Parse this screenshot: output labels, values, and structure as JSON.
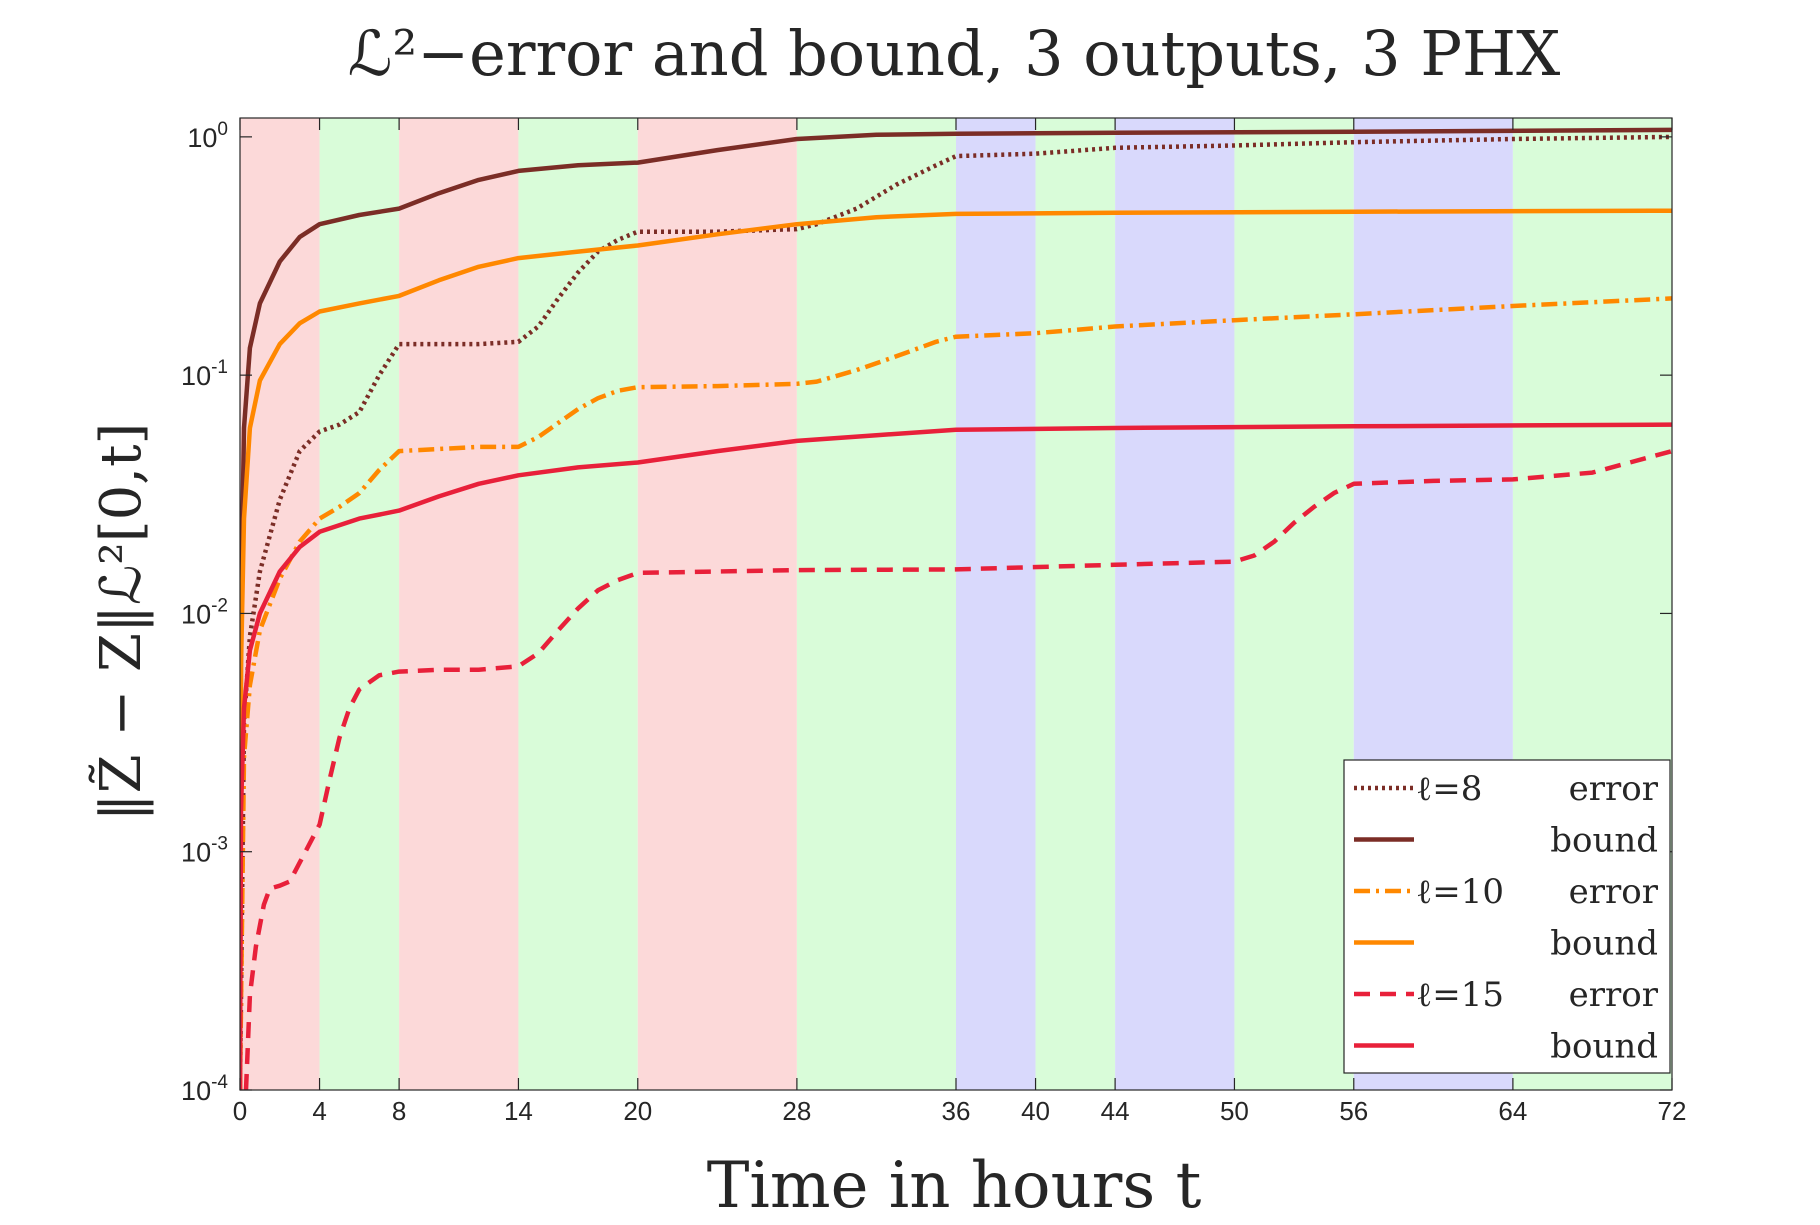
{
  "chart_data": {
    "type": "line",
    "title": "ℒ²−error and bound, 3 outputs, 3 PHX",
    "xlabel": "Time in hours t",
    "ylabel": "‖Z̃ − Z‖ℒ²[0,t]",
    "xlim": [
      0,
      72
    ],
    "ylim": [
      0.0001,
      1.2
    ],
    "yscale": "log",
    "xticks": [
      0,
      4,
      8,
      14,
      20,
      28,
      36,
      40,
      44,
      50,
      56,
      64,
      72
    ],
    "yticks": [
      {
        "value": 0.0001,
        "base": "10",
        "exp": "-4"
      },
      {
        "value": 0.001,
        "base": "10",
        "exp": "-3"
      },
      {
        "value": 0.01,
        "base": "10",
        "exp": "-2"
      },
      {
        "value": 0.1,
        "base": "10",
        "exp": "-1"
      },
      {
        "value": 1,
        "base": "10",
        "exp": "0"
      }
    ],
    "background_bands": [
      {
        "from": 0,
        "to": 4,
        "color": "#fcd9d9"
      },
      {
        "from": 4,
        "to": 8,
        "color": "#d9fcd9"
      },
      {
        "from": 8,
        "to": 14,
        "color": "#fcd9d9"
      },
      {
        "from": 14,
        "to": 20,
        "color": "#d9fcd9"
      },
      {
        "from": 20,
        "to": 28,
        "color": "#fcd9d9"
      },
      {
        "from": 28,
        "to": 36,
        "color": "#d9fcd9"
      },
      {
        "from": 36,
        "to": 40,
        "color": "#d9d9fc"
      },
      {
        "from": 40,
        "to": 44,
        "color": "#d9fcd9"
      },
      {
        "from": 44,
        "to": 50,
        "color": "#d9d9fc"
      },
      {
        "from": 50,
        "to": 56,
        "color": "#d9fcd9"
      },
      {
        "from": 56,
        "to": 64,
        "color": "#d9d9fc"
      },
      {
        "from": 64,
        "to": 72,
        "color": "#d9fcd9"
      }
    ],
    "legend_position": "bottom-right",
    "series": [
      {
        "name": "ℓ=8 error",
        "color": "#7b2d26",
        "dash": "dotted",
        "points": [
          [
            0,
            0.0001
          ],
          [
            0.2,
            0.0035
          ],
          [
            0.5,
            0.008
          ],
          [
            1,
            0.015
          ],
          [
            2,
            0.03
          ],
          [
            3,
            0.048
          ],
          [
            4,
            0.058
          ],
          [
            5,
            0.062
          ],
          [
            6,
            0.07
          ],
          [
            7,
            0.1
          ],
          [
            8,
            0.135
          ],
          [
            10,
            0.135
          ],
          [
            12,
            0.135
          ],
          [
            14,
            0.138
          ],
          [
            15,
            0.16
          ],
          [
            16,
            0.21
          ],
          [
            17,
            0.27
          ],
          [
            18,
            0.33
          ],
          [
            19,
            0.37
          ],
          [
            20,
            0.4
          ],
          [
            24,
            0.4
          ],
          [
            28,
            0.41
          ],
          [
            29,
            0.43
          ],
          [
            31,
            0.5
          ],
          [
            33,
            0.63
          ],
          [
            35,
            0.76
          ],
          [
            36,
            0.83
          ],
          [
            38,
            0.84
          ],
          [
            40,
            0.85
          ],
          [
            44,
            0.9
          ],
          [
            50,
            0.92
          ],
          [
            56,
            0.95
          ],
          [
            64,
            0.98
          ],
          [
            72,
            1.0
          ]
        ]
      },
      {
        "name": "ℓ=8 bound",
        "color": "#7b2d26",
        "dash": "solid",
        "points": [
          [
            0,
            0.0001
          ],
          [
            0.05,
            0.01
          ],
          [
            0.2,
            0.06
          ],
          [
            0.5,
            0.13
          ],
          [
            1,
            0.2
          ],
          [
            2,
            0.3
          ],
          [
            3,
            0.38
          ],
          [
            4,
            0.43
          ],
          [
            6,
            0.47
          ],
          [
            8,
            0.5
          ],
          [
            10,
            0.58
          ],
          [
            12,
            0.66
          ],
          [
            14,
            0.72
          ],
          [
            17,
            0.76
          ],
          [
            20,
            0.78
          ],
          [
            24,
            0.88
          ],
          [
            28,
            0.98
          ],
          [
            32,
            1.02
          ],
          [
            36,
            1.03
          ],
          [
            44,
            1.04
          ],
          [
            56,
            1.05
          ],
          [
            72,
            1.07
          ]
        ]
      },
      {
        "name": "ℓ=10 error",
        "color": "#ff8800",
        "dash": "dashdot",
        "points": [
          [
            0,
            0.0001
          ],
          [
            0.2,
            0.0025
          ],
          [
            0.5,
            0.005
          ],
          [
            1,
            0.0085
          ],
          [
            2,
            0.014
          ],
          [
            3,
            0.02
          ],
          [
            4,
            0.025
          ],
          [
            5,
            0.028
          ],
          [
            6,
            0.032
          ],
          [
            7,
            0.04
          ],
          [
            8,
            0.048
          ],
          [
            10,
            0.049
          ],
          [
            12,
            0.05
          ],
          [
            14,
            0.05
          ],
          [
            15,
            0.055
          ],
          [
            16,
            0.063
          ],
          [
            17,
            0.072
          ],
          [
            18,
            0.08
          ],
          [
            19,
            0.086
          ],
          [
            20,
            0.089
          ],
          [
            24,
            0.09
          ],
          [
            28,
            0.092
          ],
          [
            29,
            0.094
          ],
          [
            31,
            0.105
          ],
          [
            33,
            0.12
          ],
          [
            35,
            0.138
          ],
          [
            36,
            0.145
          ],
          [
            40,
            0.15
          ],
          [
            44,
            0.16
          ],
          [
            50,
            0.17
          ],
          [
            56,
            0.18
          ],
          [
            64,
            0.195
          ],
          [
            72,
            0.21
          ]
        ]
      },
      {
        "name": "ℓ=10 bound",
        "color": "#ff8800",
        "dash": "solid",
        "points": [
          [
            0,
            0.0001
          ],
          [
            0.05,
            0.006
          ],
          [
            0.2,
            0.025
          ],
          [
            0.5,
            0.06
          ],
          [
            1,
            0.095
          ],
          [
            2,
            0.135
          ],
          [
            3,
            0.165
          ],
          [
            4,
            0.185
          ],
          [
            6,
            0.2
          ],
          [
            8,
            0.215
          ],
          [
            10,
            0.25
          ],
          [
            12,
            0.285
          ],
          [
            14,
            0.31
          ],
          [
            17,
            0.33
          ],
          [
            20,
            0.35
          ],
          [
            24,
            0.39
          ],
          [
            28,
            0.43
          ],
          [
            32,
            0.46
          ],
          [
            36,
            0.475
          ],
          [
            44,
            0.48
          ],
          [
            56,
            0.485
          ],
          [
            72,
            0.49
          ]
        ]
      },
      {
        "name": "ℓ=15 error",
        "color": "#e8203a",
        "dash": "dashed",
        "points": [
          [
            0.3,
            0.0001
          ],
          [
            0.5,
            0.00025
          ],
          [
            0.8,
            0.0004
          ],
          [
            1.2,
            0.0006
          ],
          [
            1.5,
            0.0007
          ],
          [
            2,
            0.00072
          ],
          [
            2.5,
            0.00075
          ],
          [
            3,
            0.0009
          ],
          [
            4,
            0.0013
          ],
          [
            4.5,
            0.002
          ],
          [
            5,
            0.003
          ],
          [
            5.5,
            0.004
          ],
          [
            6,
            0.0048
          ],
          [
            7,
            0.0055
          ],
          [
            8,
            0.0057
          ],
          [
            10,
            0.0058
          ],
          [
            12,
            0.0058
          ],
          [
            14,
            0.006
          ],
          [
            15,
            0.0068
          ],
          [
            16,
            0.0085
          ],
          [
            17,
            0.0105
          ],
          [
            18,
            0.0125
          ],
          [
            19,
            0.0138
          ],
          [
            20,
            0.0148
          ],
          [
            24,
            0.015
          ],
          [
            28,
            0.0152
          ],
          [
            36,
            0.0153
          ],
          [
            44,
            0.016
          ],
          [
            50,
            0.0165
          ],
          [
            51,
            0.0175
          ],
          [
            52,
            0.02
          ],
          [
            53,
            0.024
          ],
          [
            54,
            0.028
          ],
          [
            55,
            0.032
          ],
          [
            56,
            0.035
          ],
          [
            60,
            0.036
          ],
          [
            64,
            0.0365
          ],
          [
            68,
            0.039
          ],
          [
            72,
            0.048
          ]
        ]
      },
      {
        "name": "ℓ=15 bound",
        "color": "#e8203a",
        "dash": "solid",
        "points": [
          [
            0,
            0.0001
          ],
          [
            0.05,
            0.0015
          ],
          [
            0.2,
            0.004
          ],
          [
            0.5,
            0.007
          ],
          [
            1,
            0.01
          ],
          [
            2,
            0.015
          ],
          [
            3,
            0.019
          ],
          [
            4,
            0.022
          ],
          [
            6,
            0.025
          ],
          [
            8,
            0.027
          ],
          [
            10,
            0.031
          ],
          [
            12,
            0.035
          ],
          [
            14,
            0.038
          ],
          [
            17,
            0.041
          ],
          [
            20,
            0.043
          ],
          [
            24,
            0.048
          ],
          [
            28,
            0.053
          ],
          [
            32,
            0.056
          ],
          [
            36,
            0.059
          ],
          [
            44,
            0.06
          ],
          [
            56,
            0.061
          ],
          [
            72,
            0.062
          ]
        ]
      }
    ],
    "legend": [
      {
        "series": 0,
        "label": "ℓ=8",
        "kind": "error"
      },
      {
        "series": 1,
        "label": "",
        "kind": "bound"
      },
      {
        "series": 2,
        "label": "ℓ=10",
        "kind": "error"
      },
      {
        "series": 3,
        "label": "",
        "kind": "bound"
      },
      {
        "series": 4,
        "label": "ℓ=15",
        "kind": "error"
      },
      {
        "series": 5,
        "label": "",
        "kind": "bound"
      }
    ]
  }
}
